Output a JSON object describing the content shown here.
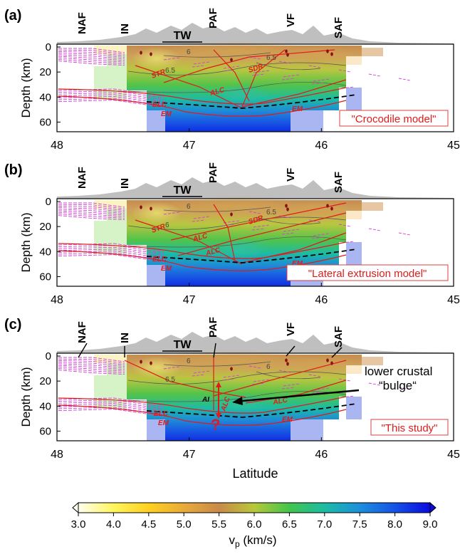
{
  "colors": {
    "frame": "#000000",
    "topography": "#bfbfbf",
    "structure": "#e01b1b",
    "label_red": "#e01b1b",
    "moho": "#000000",
    "reflector": "#d43fd4",
    "mask_blue": "#a9b6f2",
    "mask_green": "#d6f3c8",
    "mask_tan": "#e7c6a4"
  },
  "colorbar_stops": [
    {
      "v": 3.0,
      "c": "#fffff0"
    },
    {
      "v": 4.0,
      "c": "#fff55e"
    },
    {
      "v": 4.5,
      "c": "#ffd020"
    },
    {
      "v": 5.0,
      "c": "#e9aa3a"
    },
    {
      "v": 5.5,
      "c": "#c98a4a"
    },
    {
      "v": 6.0,
      "c": "#b8c83a"
    },
    {
      "v": 6.5,
      "c": "#42c54b"
    },
    {
      "v": 7.0,
      "c": "#1cbca3"
    },
    {
      "v": 7.5,
      "c": "#1c8fdc"
    },
    {
      "v": 8.0,
      "c": "#1553e6"
    },
    {
      "v": 9.0,
      "c": "#0a0ae0"
    }
  ],
  "panels": [
    {
      "id": "a",
      "panel_label": "(a)",
      "model_label": "\"Crocodile model\"",
      "faults": [
        "NAF",
        "IN",
        "TW",
        "PAF",
        "VF",
        "SAF"
      ],
      "structure_labels": [
        "STR",
        "ALC",
        "SDR",
        "ELC",
        "EM",
        "EM"
      ],
      "contour_labels": [
        "6",
        "6.5",
        "6.5"
      ],
      "xlabel": ""
    },
    {
      "id": "b",
      "panel_label": "(b)",
      "model_label": "\"Lateral extrusion model\"",
      "faults": [
        "NAF",
        "IN",
        "TW",
        "PAF",
        "VF",
        "SAF"
      ],
      "structure_labels": [
        "STR",
        "ALC",
        "ALC",
        "SDR",
        "ELC",
        "EM",
        "EM"
      ],
      "contour_labels": [
        "6",
        "6",
        "6.5"
      ],
      "xlabel": ""
    },
    {
      "id": "c",
      "panel_label": "(c)",
      "model_label": "\"This study\"",
      "faults": [
        "NAF",
        "IN",
        "TW",
        "PAF",
        "VF",
        "SAF"
      ],
      "structure_labels": [
        "AI",
        "ALC",
        "ALC",
        "ELC",
        "EM",
        "EM",
        "?"
      ],
      "contour_labels": [
        "6",
        "6.5",
        "6"
      ],
      "annotation_line1": "lower crustal",
      "annotation_line2": "“bulge“",
      "xlabel": "Latitude"
    }
  ],
  "axis": {
    "ylabel": "Depth (km)",
    "y_ticks": [
      "0",
      "20",
      "40",
      "60"
    ],
    "x_ticks": [
      "48",
      "47",
      "46",
      "45"
    ]
  },
  "colorbar": {
    "ticks": [
      "3.0",
      "4.0",
      "4.5",
      "5.0",
      "5.5",
      "6.0",
      "6.5",
      "7.0",
      "7.5",
      "8.0",
      "9.0"
    ],
    "label_main": "v",
    "label_sub": "p",
    "label_unit": " (km/s)"
  }
}
